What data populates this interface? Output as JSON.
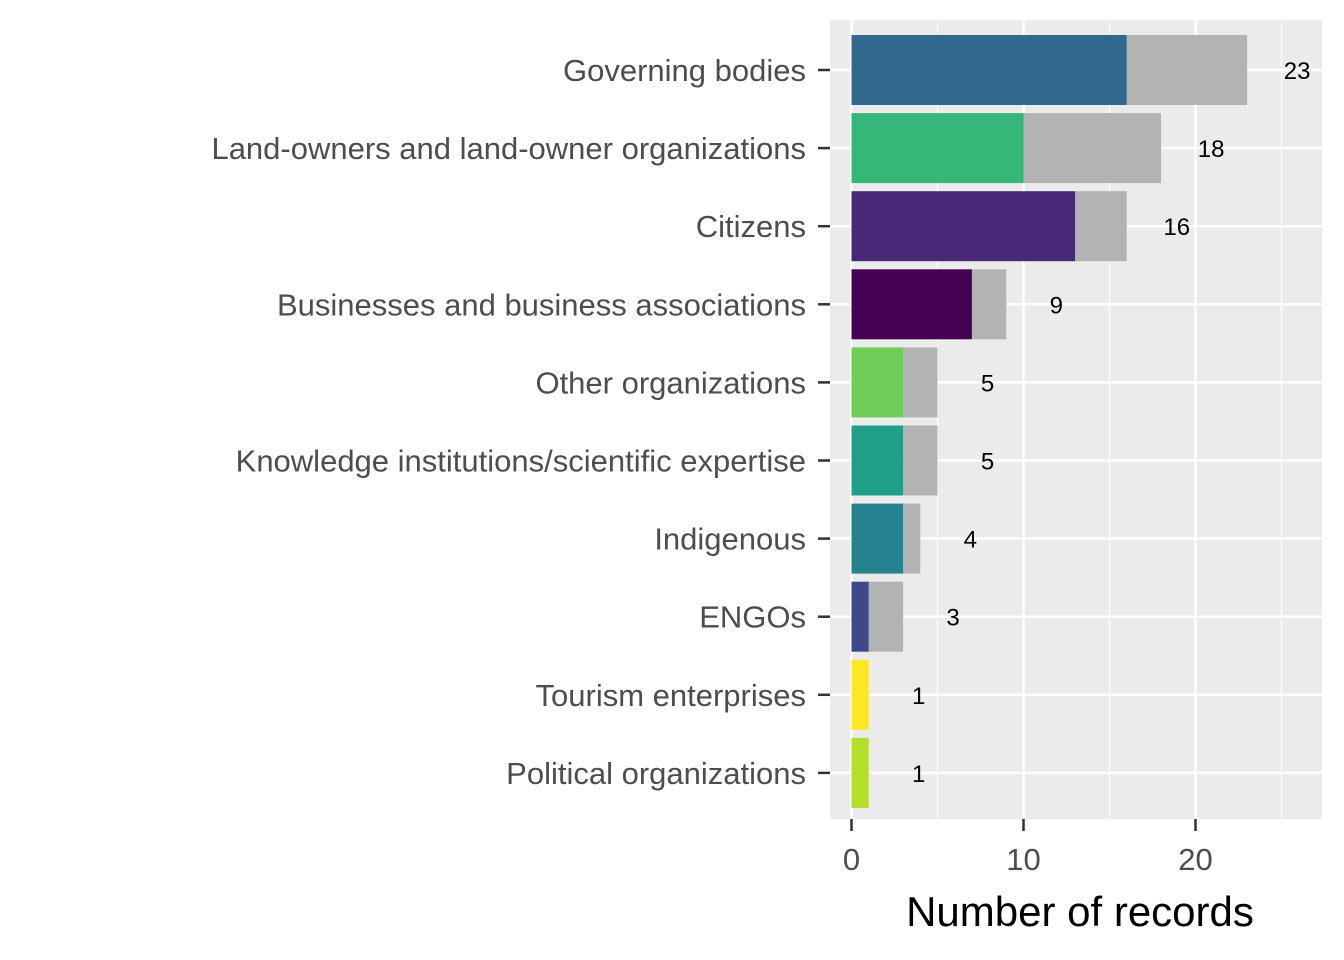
{
  "chart_data": {
    "type": "bar",
    "orientation": "horizontal",
    "stacked": true,
    "title": "",
    "xlabel": "Number of records",
    "ylabel": "",
    "xlim": [
      0,
      27.3
    ],
    "x_ticks": [
      0,
      10,
      20
    ],
    "grid": true,
    "legend": "none",
    "categories": [
      "Governing bodies",
      "Land-owners and land-owner organizations",
      "Citizens",
      "Businesses and business associations",
      "Other organizations",
      "Knowledge institutions/scientific expertise",
      "Indigenous",
      "ENGOs",
      "Tourism enterprises",
      "Political organizations"
    ],
    "colored_values": [
      16,
      10,
      13,
      7,
      3,
      3,
      3,
      1,
      1,
      1
    ],
    "totals": [
      23,
      18,
      16,
      9,
      5,
      5,
      4,
      3,
      1,
      1
    ],
    "bar_colors": [
      "#31688e",
      "#35b779",
      "#482878",
      "#440154",
      "#6ece58",
      "#1f9e89",
      "#26828e",
      "#3e4989",
      "#fde725",
      "#b5de2b"
    ],
    "remainder_color": "#b3b3b3",
    "panel_color": "#ebebeb"
  }
}
